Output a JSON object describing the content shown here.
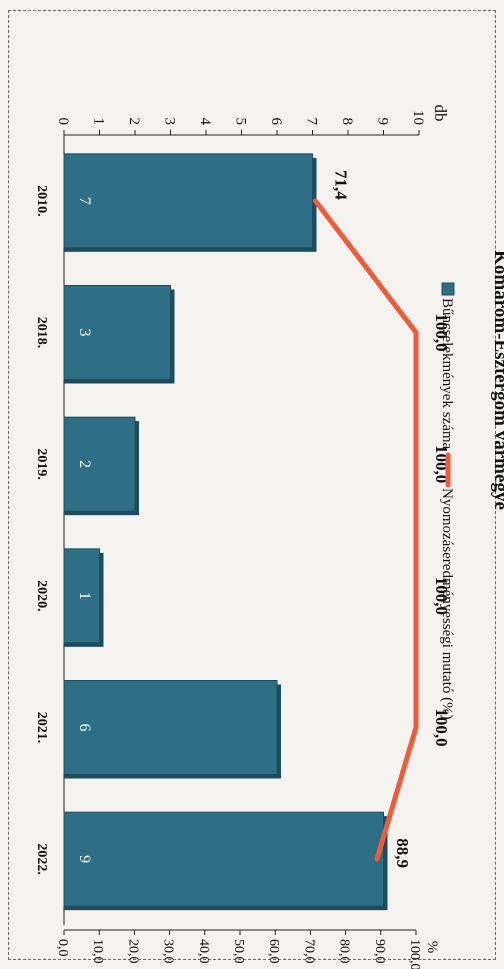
{
  "chart_data": {
    "type": "bar",
    "title": "Komárom-Esztergom vármegye",
    "categories": [
      "2010.",
      "2018.",
      "2019.",
      "2020.",
      "2021.",
      "2022."
    ],
    "series": [
      {
        "name": "Bűncselekmények száma",
        "kind": "bar",
        "axis": "left",
        "values": [
          7,
          3,
          2,
          1,
          6,
          9
        ]
      },
      {
        "name": "Nyomozáseredményességi mutató (%)",
        "kind": "line",
        "axis": "right",
        "values": [
          71.4,
          100.0,
          100.0,
          100.0,
          100.0,
          88.9
        ]
      }
    ],
    "bar_labels": [
      "7",
      "3",
      "2",
      "1",
      "6",
      "9"
    ],
    "line_labels": [
      "71,4",
      "100,0",
      "100,0",
      "100,0",
      "100,0",
      "88,9"
    ],
    "left_axis": {
      "label": "db",
      "ticks": [
        "0",
        "1",
        "2",
        "3",
        "4",
        "5",
        "6",
        "7",
        "8",
        "9",
        "10"
      ],
      "range": [
        0,
        10
      ]
    },
    "right_axis": {
      "label": "%",
      "ticks": [
        "0,0",
        "10,0",
        "20,0",
        "30,0",
        "40,0",
        "50,0",
        "60,0",
        "70,0",
        "80,0",
        "90,0",
        "100,0"
      ],
      "range": [
        0,
        100
      ]
    },
    "legend_position": "top",
    "orientation": "rotated 90° clockwise",
    "colors": {
      "bar": "#2e6f86",
      "bar_dark": "#1d4c5e",
      "line": "#f15a3a"
    }
  }
}
